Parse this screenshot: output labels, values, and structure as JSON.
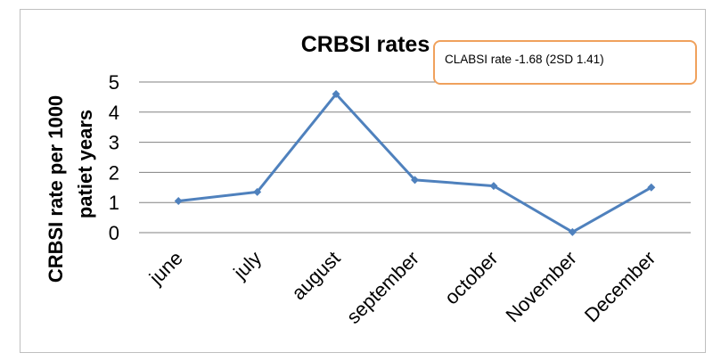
{
  "chart_data": {
    "type": "line",
    "title": "CRBSI rates",
    "ylabel_lines": [
      "CRBSI rate per 1000",
      "patiet years"
    ],
    "xlabel": "",
    "categories": [
      "june",
      "july",
      "august",
      "september",
      "october",
      "November",
      "December"
    ],
    "series": [
      {
        "values": [
          1.05,
          1.35,
          4.6,
          1.75,
          1.55,
          0.02,
          1.5
        ],
        "color": "#4f81bd"
      }
    ],
    "ylim": [
      0,
      5
    ],
    "yticks": [
      "0",
      "1",
      "2",
      "3",
      "4",
      "5"
    ],
    "grid": true,
    "annotation": "CLABSI rate -1.68 (2SD 1.41)",
    "annotation_border_color": "#f0a15c",
    "gridline_color": "#808080"
  }
}
